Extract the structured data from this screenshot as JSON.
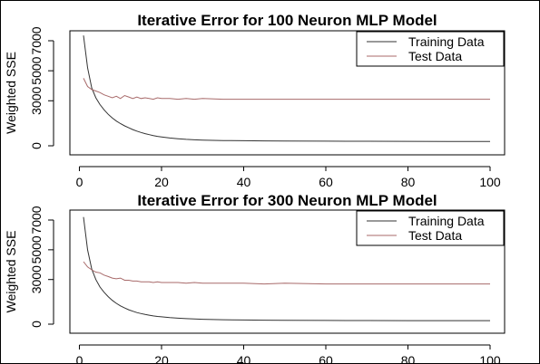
{
  "chart_data": [
    {
      "type": "line",
      "title": "Iterative Error for 100 Neuron MLP Model",
      "xlabel": "",
      "ylabel": "Weighted SSE",
      "xlim": [
        1,
        100
      ],
      "ylim": [
        0,
        7000
      ],
      "xticks": [
        0,
        20,
        40,
        60,
        80,
        100
      ],
      "yticks": [
        0,
        3000,
        5000,
        7000
      ],
      "legend_position": "top-right",
      "series": [
        {
          "name": "Training Data",
          "color": "#333333",
          "x": [
            1,
            2,
            3,
            4,
            5,
            6,
            7,
            8,
            9,
            10,
            11,
            12,
            13,
            14,
            15,
            16,
            17,
            18,
            19,
            20,
            22,
            24,
            26,
            28,
            30,
            35,
            40,
            45,
            50,
            60,
            70,
            80,
            90,
            100
          ],
          "y": [
            7350,
            5200,
            3850,
            3200,
            2750,
            2400,
            2100,
            1850,
            1650,
            1480,
            1330,
            1200,
            1080,
            980,
            890,
            810,
            740,
            680,
            630,
            590,
            520,
            470,
            430,
            400,
            380,
            350,
            335,
            325,
            315,
            305,
            300,
            295,
            292,
            290
          ]
        },
        {
          "name": "Test Data",
          "color": "#a86a6a",
          "x": [
            1,
            2,
            3,
            4,
            5,
            6,
            7,
            8,
            9,
            10,
            11,
            12,
            13,
            14,
            15,
            16,
            17,
            18,
            19,
            20,
            22,
            24,
            26,
            28,
            30,
            35,
            40,
            45,
            50,
            60,
            70,
            80,
            90,
            100
          ],
          "y": [
            4500,
            3950,
            3750,
            3650,
            3550,
            3400,
            3300,
            3200,
            3300,
            3150,
            3350,
            3250,
            3150,
            3250,
            3150,
            3200,
            3150,
            3100,
            3200,
            3150,
            3150,
            3100,
            3150,
            3100,
            3150,
            3100,
            3100,
            3100,
            3100,
            3100,
            3100,
            3100,
            3100,
            3100
          ]
        }
      ]
    },
    {
      "type": "line",
      "title": "Iterative Error for 300 Neuron MLP Model",
      "xlabel": "",
      "ylabel": "Weighted SSE",
      "xlim": [
        1,
        100
      ],
      "ylim": [
        0,
        7000
      ],
      "xticks": [
        0,
        20,
        40,
        60,
        80,
        100
      ],
      "yticks": [
        0,
        3000,
        5000,
        7000
      ],
      "legend_position": "top-right",
      "series": [
        {
          "name": "Training Data",
          "color": "#333333",
          "x": [
            1,
            2,
            3,
            4,
            5,
            6,
            7,
            8,
            9,
            10,
            11,
            12,
            13,
            14,
            15,
            16,
            17,
            18,
            19,
            20,
            22,
            24,
            26,
            28,
            30,
            35,
            40,
            45,
            50,
            60,
            70,
            80,
            90,
            100
          ],
          "y": [
            7200,
            5000,
            3700,
            3000,
            2500,
            2150,
            1850,
            1600,
            1400,
            1230,
            1090,
            970,
            870,
            780,
            710,
            650,
            600,
            555,
            520,
            490,
            440,
            400,
            370,
            350,
            330,
            300,
            280,
            270,
            260,
            250,
            245,
            240,
            238,
            235
          ]
        },
        {
          "name": "Test Data",
          "color": "#a86a6a",
          "x": [
            1,
            2,
            3,
            4,
            5,
            6,
            7,
            8,
            9,
            10,
            11,
            12,
            13,
            14,
            15,
            16,
            17,
            18,
            19,
            20,
            22,
            24,
            26,
            28,
            30,
            35,
            40,
            45,
            50,
            60,
            70,
            80,
            90,
            100
          ],
          "y": [
            4200,
            3850,
            3650,
            3500,
            3450,
            3300,
            3200,
            3100,
            3050,
            3100,
            2950,
            2950,
            2900,
            2900,
            2850,
            2850,
            2850,
            2800,
            2850,
            2800,
            2800,
            2800,
            2750,
            2800,
            2750,
            2750,
            2750,
            2700,
            2750,
            2700,
            2700,
            2700,
            2700,
            2700
          ]
        }
      ]
    }
  ]
}
